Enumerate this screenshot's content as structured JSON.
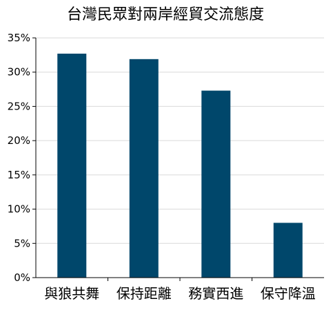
{
  "chart_data": {
    "type": "bar",
    "title": "台灣民眾對兩岸經貿交流態度",
    "categories": [
      "與狼共舞",
      "保持距離",
      "務實西進",
      "保守降溫"
    ],
    "values": [
      32.7,
      31.9,
      27.3,
      8.0
    ],
    "ylim": [
      0,
      35
    ],
    "yticks": [
      "0%",
      "5%",
      "10%",
      "15%",
      "20%",
      "25%",
      "30%",
      "35%"
    ],
    "grid": true,
    "bar_color": "#00476b",
    "xlabel": "",
    "ylabel": ""
  }
}
